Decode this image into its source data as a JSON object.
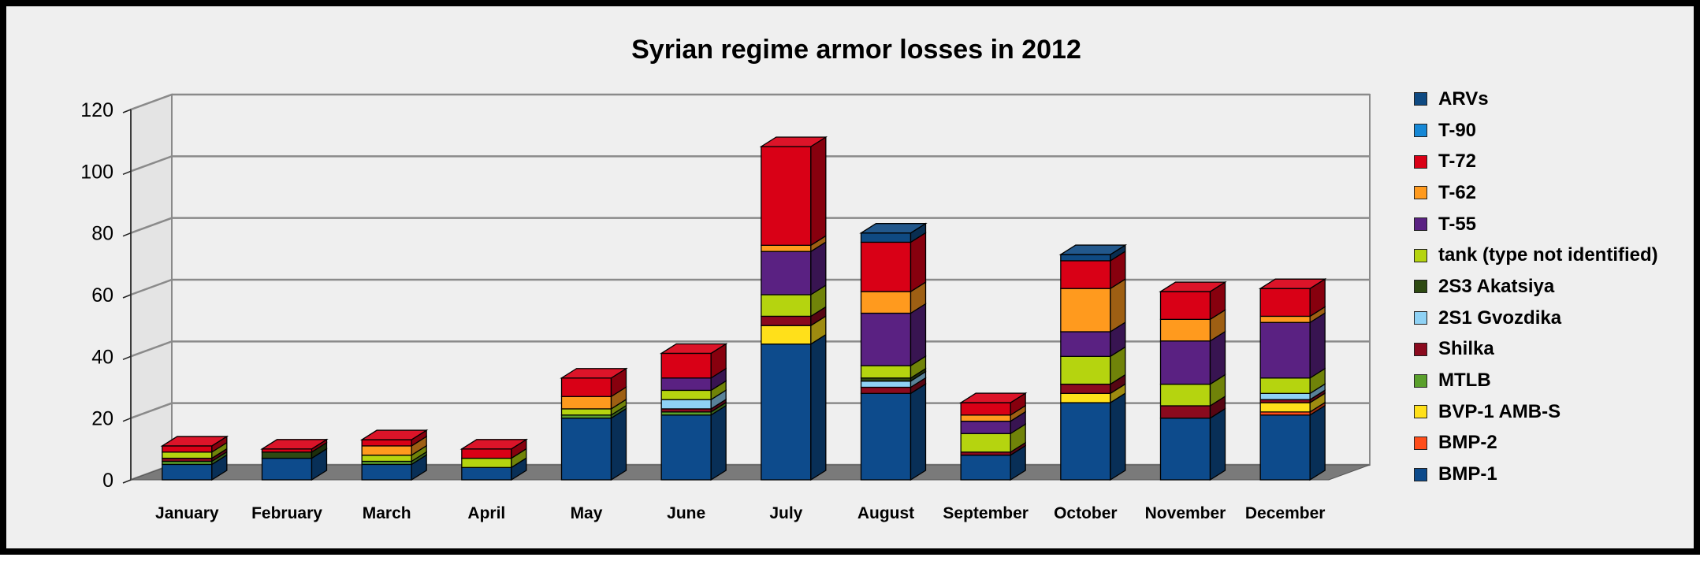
{
  "chart_data": {
    "type": "bar",
    "stacked": true,
    "three_d": true,
    "title": "Syrian regime armor losses in 2012",
    "xlabel": "",
    "ylabel": "",
    "ylim": [
      0,
      120
    ],
    "yticks": [
      0,
      20,
      40,
      60,
      80,
      100,
      120
    ],
    "grid": true,
    "legend_position": "right",
    "categories": [
      "January",
      "February",
      "March",
      "April",
      "May",
      "June",
      "July",
      "August",
      "September",
      "October",
      "November",
      "December"
    ],
    "series": [
      {
        "name": "BMP-1",
        "color": "#0d4b8c",
        "values": [
          5,
          7,
          5,
          4,
          20,
          21,
          44,
          28,
          8,
          25,
          20,
          21
        ]
      },
      {
        "name": "BMP-2",
        "color": "#ff4d1a",
        "values": [
          0,
          0,
          0,
          0,
          0,
          0,
          0,
          0,
          0,
          0,
          0,
          1
        ]
      },
      {
        "name": "BVP-1 AMB-S",
        "color": "#ffe01a",
        "values": [
          0,
          0,
          0,
          0,
          0,
          0,
          6,
          0,
          0,
          3,
          0,
          3
        ]
      },
      {
        "name": "MTLB",
        "color": "#5aa02c",
        "values": [
          1,
          0,
          1,
          0,
          1,
          1,
          0,
          0,
          0,
          0,
          0,
          0
        ]
      },
      {
        "name": "Shilka",
        "color": "#8b0a1e",
        "values": [
          1,
          0,
          0,
          0,
          0,
          1,
          3,
          2,
          1,
          3,
          4,
          1
        ]
      },
      {
        "name": "2S1 Gvozdika",
        "color": "#8fd2f5",
        "values": [
          0,
          0,
          0,
          0,
          0,
          3,
          0,
          2,
          0,
          0,
          0,
          2
        ]
      },
      {
        "name": "2S3 Akatsiya",
        "color": "#2e4a12",
        "values": [
          0,
          2,
          0,
          0,
          0,
          0,
          0,
          1,
          0,
          0,
          0,
          0
        ]
      },
      {
        "name": "tank (type not identified)",
        "color": "#b5d40f",
        "values": [
          2,
          0,
          2,
          3,
          2,
          3,
          7,
          4,
          6,
          9,
          7,
          5
        ]
      },
      {
        "name": "T-55",
        "color": "#5a2182",
        "values": [
          0,
          0,
          0,
          0,
          0,
          4,
          14,
          17,
          4,
          8,
          14,
          18
        ]
      },
      {
        "name": "T-62",
        "color": "#ff9a1e",
        "values": [
          0,
          0,
          3,
          0,
          4,
          0,
          2,
          7,
          2,
          14,
          7,
          2
        ]
      },
      {
        "name": "T-72",
        "color": "#d90016",
        "values": [
          2,
          1,
          2,
          3,
          6,
          8,
          32,
          16,
          4,
          9,
          9,
          9
        ]
      },
      {
        "name": "T-90",
        "color": "#1688d6",
        "values": [
          0,
          0,
          0,
          0,
          0,
          0,
          0,
          0,
          0,
          0,
          0,
          0
        ]
      },
      {
        "name": "ARVs",
        "color": "#0f4a82",
        "values": [
          0,
          0,
          0,
          0,
          0,
          0,
          0,
          3,
          0,
          2,
          0,
          0
        ]
      }
    ]
  }
}
